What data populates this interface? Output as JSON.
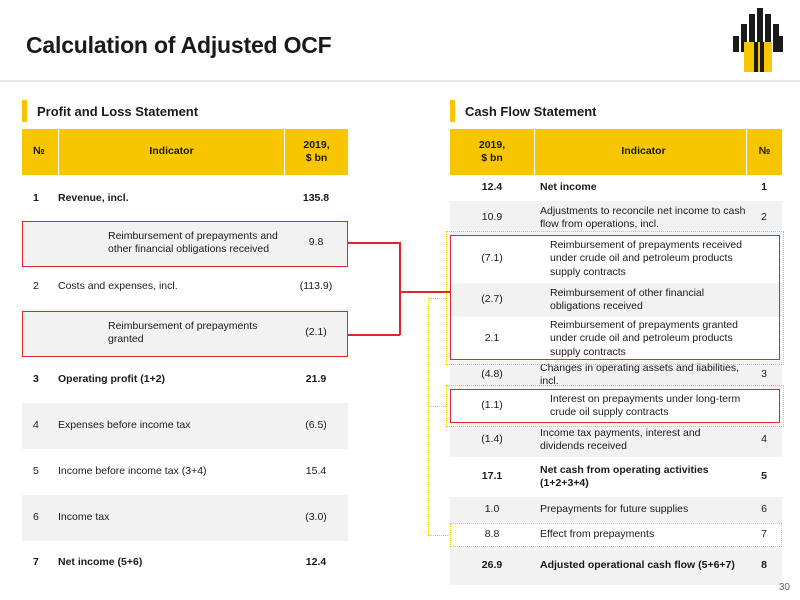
{
  "title": "Calculation of Adjusted OCF",
  "page_number": "30",
  "colors": {
    "accent": "#f7c600",
    "highlight": "#e0262c",
    "shade": "#f2f2f2"
  },
  "pl": {
    "section_title": "Profit and Loss Statement",
    "headers": {
      "num": "№",
      "indicator": "Indicator",
      "value": "2019,\n$ bn"
    },
    "rows": [
      {
        "num": "1",
        "indicator": "Revenue, incl.",
        "value": "135.8"
      },
      {
        "num": "",
        "indicator": "Reimbursement of prepayments and other financial obligations received",
        "value": "9.8"
      },
      {
        "num": "2",
        "indicator": "Costs and expenses, incl.",
        "value": "(113.9)"
      },
      {
        "num": "",
        "indicator": "Reimbursement of prepayments granted",
        "value": "(2.1)"
      },
      {
        "num": "3",
        "indicator": "Operating profit (1+2)",
        "value": "21.9"
      },
      {
        "num": "4",
        "indicator": "Expenses before income tax",
        "value": "(6.5)"
      },
      {
        "num": "5",
        "indicator": "Income before income tax (3+4)",
        "value": "15.4"
      },
      {
        "num": "6",
        "indicator": "Income tax",
        "value": "(3.0)"
      },
      {
        "num": "7",
        "indicator": "Net income (5+6)",
        "value": "12.4"
      }
    ]
  },
  "cf": {
    "section_title": "Cash Flow Statement",
    "headers": {
      "value": "2019,\n$ bn",
      "indicator": "Indicator",
      "num": "№"
    },
    "rows": [
      {
        "value": "12.4",
        "indicator": "Net income",
        "num": "1"
      },
      {
        "value": "10.9",
        "indicator": "Adjustments to reconcile net income to cash flow from operations, incl.",
        "num": "2"
      },
      {
        "value": "(7.1)",
        "indicator": "Reimbursement of prepayments received under crude oil and petroleum products supply contracts",
        "num": ""
      },
      {
        "value": "(2.7)",
        "indicator": "Reimbursement of other financial obligations received",
        "num": ""
      },
      {
        "value": "2.1",
        "indicator": "Reimbursement of prepayments granted under crude oil and petroleum products supply contracts",
        "num": ""
      },
      {
        "value": "(4.8)",
        "indicator": "Changes in operating assets and liabilities, incl.",
        "num": "3"
      },
      {
        "value": "(1.1)",
        "indicator": "Interest on prepayments under long-term crude oil supply contracts",
        "num": ""
      },
      {
        "value": "(1.4)",
        "indicator": "Income tax payments, interest and dividends received",
        "num": "4"
      },
      {
        "value": "17.1",
        "indicator": "Net cash from operating activities (1+2+3+4)",
        "num": "5"
      },
      {
        "value": "1.0",
        "indicator": "Prepayments for future supplies",
        "num": "6"
      },
      {
        "value": "8.8",
        "indicator": "Effect from prepayments",
        "num": "7"
      },
      {
        "value": "26.9",
        "indicator": "Adjusted operational cash flow (5+6+7)",
        "num": "8"
      }
    ]
  }
}
